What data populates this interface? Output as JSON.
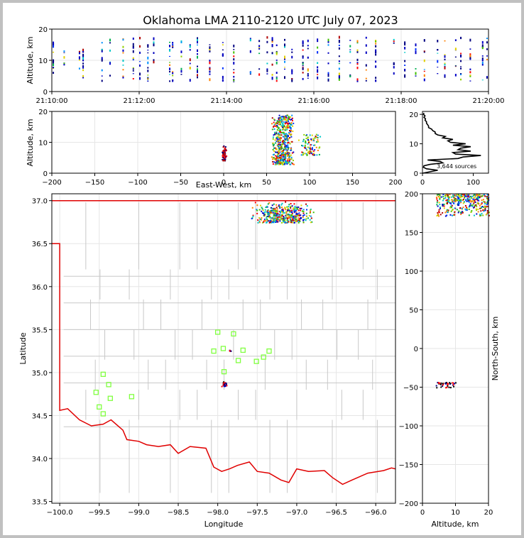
{
  "title": "Oklahoma LMA 2110-2120 UTC July 07, 2023",
  "chart_data": [
    {
      "panel": "altitude-time",
      "type": "scatter",
      "ylabel": "Altitude, km",
      "xlabel": "",
      "ylim": [
        0,
        20
      ],
      "yticks": [
        "0",
        "10",
        "20"
      ],
      "xticks": [
        "21:10:00",
        "21:12:00",
        "21:14:00",
        "21:16:00",
        "21:18:00",
        "21:20:00"
      ],
      "xlim_seconds_after_2110": [
        0,
        600
      ],
      "time_columns_seconds_after_2110": [
        2,
        17,
        38,
        43,
        69,
        80,
        98,
        112,
        121,
        132,
        140,
        162,
        166,
        178,
        190,
        200,
        217,
        235,
        250,
        273,
        285,
        296,
        303,
        309,
        320,
        330,
        345,
        352,
        365,
        380,
        395,
        410,
        420,
        432,
        445,
        470,
        485,
        500,
        512,
        530,
        540,
        555,
        562,
        575,
        592,
        598
      ],
      "grid": true
    },
    {
      "panel": "altitude-east-west",
      "type": "scatter",
      "xlabel": "East-West, km",
      "ylabel": "Altitude, km",
      "xlim": [
        -200,
        200
      ],
      "ylim": [
        0,
        20
      ],
      "xticks": [
        "−200",
        "−150",
        "−100",
        "−50",
        "0",
        "50",
        "100",
        "150",
        "200"
      ],
      "yticks": [
        "0",
        "10",
        "20"
      ],
      "clusters": [
        {
          "x_center": 0,
          "x_spread": 3,
          "z_min": 4,
          "z_max": 9
        },
        {
          "x_center": 68,
          "x_spread": 14,
          "z_min": 3,
          "z_max": 19
        },
        {
          "x_center": 100,
          "x_spread": 15,
          "z_min": 6,
          "z_max": 13
        }
      ],
      "grid": true
    },
    {
      "panel": "altitude-histogram",
      "type": "line",
      "annotation": "3,644 sources",
      "xlim": [
        0,
        130
      ],
      "ylim": [
        0,
        21
      ],
      "xticks": [
        "0",
        "100"
      ],
      "yticks": [
        "0",
        "10",
        "20"
      ],
      "profile": [
        [
          0.5,
          0
        ],
        [
          30,
          1.0
        ],
        [
          8,
          1.5
        ],
        [
          2,
          2.0
        ],
        [
          3,
          2.5
        ],
        [
          15,
          3.0
        ],
        [
          40,
          3.5
        ],
        [
          35,
          4.0
        ],
        [
          10,
          4.5
        ],
        [
          70,
          5.0
        ],
        [
          80,
          5.5
        ],
        [
          115,
          6.0
        ],
        [
          65,
          6.5
        ],
        [
          60,
          7.0
        ],
        [
          95,
          7.5
        ],
        [
          70,
          8.0
        ],
        [
          75,
          8.5
        ],
        [
          95,
          9.0
        ],
        [
          60,
          9.5
        ],
        [
          85,
          10.0
        ],
        [
          55,
          10.5
        ],
        [
          50,
          11.0
        ],
        [
          60,
          11.5
        ],
        [
          40,
          12.0
        ],
        [
          45,
          12.5
        ],
        [
          30,
          13.0
        ],
        [
          25,
          13.5
        ],
        [
          25,
          14.0
        ],
        [
          20,
          14.5
        ],
        [
          18,
          15.0
        ],
        [
          12,
          15.5
        ],
        [
          12,
          16.0
        ],
        [
          10,
          16.5
        ],
        [
          8,
          17.0
        ],
        [
          8,
          17.5
        ],
        [
          5,
          18.0
        ],
        [
          6,
          18.5
        ],
        [
          3,
          19.0
        ],
        [
          5,
          19.5
        ],
        [
          2,
          20.0
        ],
        [
          3,
          20.5
        ]
      ]
    },
    {
      "panel": "plan-view",
      "type": "scatter",
      "xlabel": "Longitude",
      "ylabel": "Latitude",
      "xlim": [
        -100.1,
        -95.75
      ],
      "ylim": [
        33.48,
        37.08
      ],
      "xticks": [
        "−100.0",
        "−99.5",
        "−99.0",
        "−98.5",
        "−98.0",
        "−97.5",
        "−97.0",
        "−96.5",
        "−96.0"
      ],
      "yticks": [
        "33.5",
        "34.0",
        "34.5",
        "35.0",
        "35.5",
        "36.0",
        "36.5",
        "37.0"
      ],
      "stations": [
        [
          -98.0,
          35.47
        ],
        [
          -97.8,
          35.45
        ],
        [
          -98.05,
          35.25
        ],
        [
          -97.93,
          35.28
        ],
        [
          -97.68,
          35.26
        ],
        [
          -97.35,
          35.25
        ],
        [
          -97.42,
          35.18
        ],
        [
          -97.74,
          35.14
        ],
        [
          -97.51,
          35.13
        ],
        [
          -97.92,
          35.01
        ],
        [
          -99.45,
          34.98
        ],
        [
          -99.38,
          34.86
        ],
        [
          -99.54,
          34.77
        ],
        [
          -99.36,
          34.7
        ],
        [
          -99.09,
          34.72
        ],
        [
          -99.5,
          34.6
        ],
        [
          -99.45,
          34.52
        ]
      ],
      "clusters": [
        {
          "lon_center": -97.18,
          "lon_spread": 0.42,
          "lat_min": 36.75,
          "lat_max": 37.0
        },
        {
          "lon_center": -97.92,
          "lon_spread": 0.04,
          "lat_min": 34.84,
          "lat_max": 34.9
        },
        {
          "lon_center": -97.85,
          "lon_spread": 0.02,
          "lat_min": 35.25,
          "lat_max": 35.27
        }
      ],
      "grid": true
    },
    {
      "panel": "north-south-altitude",
      "type": "scatter",
      "xlabel": "Altitude, km",
      "ylabel": "North-South, km",
      "xlim": [
        0,
        20
      ],
      "ylim": [
        -200,
        200
      ],
      "xticks": [
        "0",
        "10",
        "20"
      ],
      "yticks": [
        "−200",
        "−150",
        "−100",
        "−50",
        "0",
        "50",
        "100",
        "150",
        "200"
      ],
      "clusters": [
        {
          "z_min": 4,
          "z_max": 20,
          "ns_min": 172,
          "ns_max": 200
        },
        {
          "z_min": 4,
          "z_max": 10,
          "ns_min": -50,
          "ns_max": -43
        }
      ],
      "grid": true
    }
  ]
}
